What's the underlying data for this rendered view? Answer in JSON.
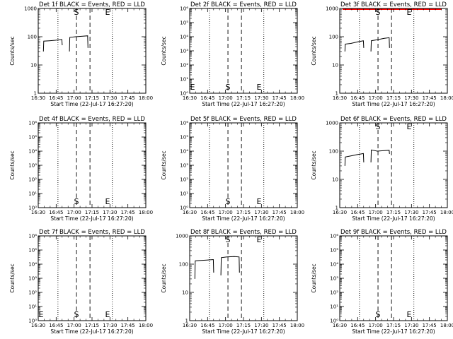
{
  "time_ticks": [
    "16:30",
    "16:45",
    "17:00",
    "17:15",
    "17:30",
    "17:45",
    "18:00"
  ],
  "xlabel": "Start Time (22-Jul-17 16:27:20)",
  "ylabel": "Counts/sec",
  "marker_labels": {
    "start": "S",
    "end": "E"
  },
  "colors": {
    "events": "#000000",
    "lld": "#ff0000"
  },
  "chart_data": [
    {
      "type": "line",
      "title": "Det 1f  BLACK = Events, RED = LLD",
      "y_scale": "log",
      "ylim": [
        1,
        1000
      ],
      "y_tick_labels": [
        "1",
        "10",
        "100",
        "1000"
      ],
      "x_range_min": [
        -3.3,
        39.7
      ],
      "vlines_dotted_min": [
        2.7,
        48.2
      ],
      "vlines_dashed_min": [
        18.2,
        29.5
      ],
      "markers": {
        "S_min": 18.2,
        "E_min": 44.2,
        "pos": "top"
      },
      "series": [
        {
          "values": [
            [
              0,
              30
            ],
            [
              0.3,
              70
            ],
            [
              5,
              72
            ],
            [
              10,
              75
            ],
            [
              15.5,
              80
            ],
            [
              15.8,
              50
            ]
          ]
        },
        {
          "values": [
            [
              21.8,
              30
            ],
            [
              22.1,
              95
            ],
            [
              27,
              100
            ],
            [
              33,
              105
            ],
            [
              37,
              108
            ],
            [
              37.3,
              40
            ]
          ]
        }
      ]
    },
    {
      "type": "line",
      "title": "Det 2f  BLACK = Events, RED = LLD",
      "y_scale": "log",
      "ylim": [
        1,
        1000000.0
      ],
      "y_tick_labels": [
        "10⁰",
        "10¹",
        "10²",
        "10³",
        "10⁴",
        "10⁵",
        "10⁶"
      ],
      "x_range_min": [
        -3.3,
        39.7
      ],
      "vlines_dotted_min": [
        2.7,
        48.2
      ],
      "vlines_dashed_min": [
        18.2,
        29.5
      ],
      "markers": {
        "S_min": 18.2,
        "E_min": 44.2,
        "pos": "bottom",
        "E_left_axis": true
      },
      "series": []
    },
    {
      "type": "line",
      "title": "Det 3f  BLACK = Events, RED = LLD",
      "y_scale": "log",
      "ylim": [
        1,
        1000
      ],
      "y_tick_labels": [
        "1",
        "10",
        "100",
        "1000"
      ],
      "x_range_min": [
        -3.3,
        39.7
      ],
      "vlines_dotted_min": [
        2.7,
        48.2
      ],
      "vlines_dashed_min": [
        18.2,
        29.5
      ],
      "markers": {
        "S_min": 18.2,
        "E_min": 44.2,
        "pos": "top"
      },
      "lld_top_line": true,
      "series": [
        {
          "values": [
            [
              0,
              30
            ],
            [
              0.3,
              55
            ],
            [
              5,
              58
            ],
            [
              10,
              65
            ],
            [
              15.5,
              72
            ],
            [
              15.8,
              40
            ]
          ]
        },
        {
          "values": [
            [
              21.8,
              30
            ],
            [
              22.1,
              72
            ],
            [
              27,
              78
            ],
            [
              33,
              88
            ],
            [
              37,
              92
            ],
            [
              37.3,
              40
            ]
          ]
        }
      ]
    },
    {
      "type": "line",
      "title": "Det 4f  BLACK = Events, RED = LLD",
      "y_scale": "log",
      "ylim": [
        1,
        1000000.0
      ],
      "y_tick_labels": [
        "10⁰",
        "10¹",
        "10²",
        "10³",
        "10⁴",
        "10⁵",
        "10⁶"
      ],
      "x_range_min": [
        -3.3,
        39.7
      ],
      "vlines_dotted_min": [
        2.7,
        48.2
      ],
      "vlines_dashed_min": [
        18.2,
        29.5
      ],
      "markers": {
        "S_min": 18.2,
        "E_min": 44.2,
        "pos": "bottom"
      },
      "series": []
    },
    {
      "type": "line",
      "title": "Det 5f  BLACK = Events, RED = LLD",
      "y_scale": "log",
      "ylim": [
        1,
        1000000.0
      ],
      "y_tick_labels": [
        "10⁰",
        "10¹",
        "10²",
        "10³",
        "10⁴",
        "10⁵",
        "10⁶"
      ],
      "x_range_min": [
        -3.3,
        39.7
      ],
      "vlines_dotted_min": [
        2.7,
        48.2
      ],
      "vlines_dashed_min": [
        18.2,
        29.5
      ],
      "markers": {
        "S_min": 18.2,
        "E_min": 44.2,
        "pos": "bottom"
      },
      "series": []
    },
    {
      "type": "line",
      "title": "Det 6f  BLACK = Events, RED = LLD",
      "y_scale": "log",
      "ylim": [
        1,
        1000
      ],
      "y_tick_labels": [
        "1",
        "10",
        "100",
        "1000"
      ],
      "x_range_min": [
        -3.3,
        39.7
      ],
      "vlines_dotted_min": [
        2.7,
        48.2
      ],
      "vlines_dashed_min": [
        18.2,
        29.5
      ],
      "markers": {
        "S_min": 18.2,
        "E_min": 44.2,
        "pos": "top"
      },
      "series": [
        {
          "values": [
            [
              0,
              30
            ],
            [
              0.3,
              62
            ],
            [
              5,
              68
            ],
            [
              10,
              75
            ],
            [
              15.5,
              82
            ],
            [
              15.8,
              40
            ]
          ]
        },
        {
          "values": [
            [
              21.8,
              40
            ],
            [
              22.1,
              110
            ],
            [
              27,
              100
            ],
            [
              33,
              104
            ],
            [
              37,
              108
            ],
            [
              37.3,
              80
            ]
          ]
        }
      ]
    },
    {
      "type": "line",
      "title": "Det 7f  BLACK = Events, RED = LLD",
      "y_scale": "log",
      "ylim": [
        1,
        1000000.0
      ],
      "y_tick_labels": [
        "10⁰",
        "10¹",
        "10²",
        "10³",
        "10⁴",
        "10⁵",
        "10⁶"
      ],
      "x_range_min": [
        -3.3,
        39.7
      ],
      "vlines_dotted_min": [
        2.7,
        48.2
      ],
      "vlines_dashed_min": [
        18.2,
        29.5
      ],
      "markers": {
        "S_min": 18.2,
        "E_min": 44.2,
        "pos": "bottom",
        "E_left_axis": true
      },
      "series": []
    },
    {
      "type": "line",
      "title": "Det 8f  BLACK = Events, RED = LLD",
      "y_scale": "log",
      "ylim": [
        1,
        1000
      ],
      "y_tick_labels": [
        "1",
        "10",
        "100",
        "1000"
      ],
      "x_range_min": [
        -3.3,
        39.7
      ],
      "vlines_dotted_min": [
        2.7,
        48.2
      ],
      "vlines_dashed_min": [
        18.2,
        29.5
      ],
      "markers": {
        "S_min": 18.2,
        "E_min": 44.2,
        "pos": "top"
      },
      "series": [
        {
          "values": [
            [
              0,
              30
            ],
            [
              0.3,
              130
            ],
            [
              5,
              135
            ],
            [
              10,
              140
            ],
            [
              15.5,
              145
            ],
            [
              15.8,
              50
            ]
          ]
        },
        {
          "values": [
            [
              21.8,
              40
            ],
            [
              22.1,
              170
            ],
            [
              27,
              180
            ],
            [
              33,
              185
            ],
            [
              37,
              180
            ],
            [
              37.3,
              50
            ]
          ]
        }
      ]
    },
    {
      "type": "line",
      "title": "Det 9f  BLACK = Events, RED = LLD",
      "y_scale": "log",
      "ylim": [
        1,
        1000000.0
      ],
      "y_tick_labels": [
        "10⁰",
        "10¹",
        "10²",
        "10³",
        "10⁴",
        "10⁵",
        "10⁶"
      ],
      "x_range_min": [
        -3.3,
        39.7
      ],
      "vlines_dotted_min": [
        2.7,
        48.2
      ],
      "vlines_dashed_min": [
        18.2,
        29.5
      ],
      "markers": {
        "S_min": 18.2,
        "E_min": 44.2,
        "pos": "bottom"
      },
      "series": []
    }
  ]
}
